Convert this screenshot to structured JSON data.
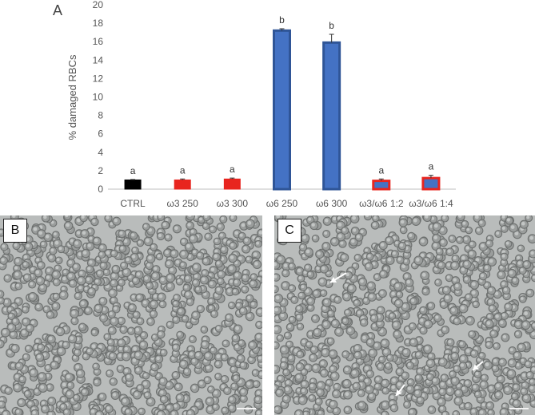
{
  "panel_labels": {
    "a": "A",
    "b": "B",
    "c": "C"
  },
  "chart_data": {
    "type": "bar",
    "ylabel": "% damaged RBCs",
    "xlabel": "",
    "ylim": [
      0,
      20
    ],
    "yticks": [
      0,
      2,
      4,
      6,
      8,
      10,
      12,
      14,
      16,
      18,
      20
    ],
    "categories": [
      "CTRL",
      "ω3 250",
      "ω3 300",
      "ω6 250",
      "ω6 300",
      "ω3/ω6 1:2",
      "ω3/ω6 1:4"
    ],
    "values": [
      1.0,
      1.0,
      1.1,
      17.2,
      15.9,
      0.9,
      1.2
    ],
    "errors": [
      0.05,
      0.1,
      0.1,
      0.2,
      0.9,
      0.2,
      0.3
    ],
    "significance_letters": [
      "a",
      "a",
      "a",
      "b",
      "b",
      "a",
      "a"
    ],
    "bar_colors": [
      "#000000",
      "#e8251f",
      "#e8251f",
      "#4472c4",
      "#4472c4",
      "#4472c4",
      "#4472c4"
    ],
    "bar_edge_colors": [
      "#000000",
      "#e8251f",
      "#e8251f",
      "#2f5597",
      "#2f5597",
      "#e8251f",
      "#e8251f"
    ],
    "grid": false
  }
}
